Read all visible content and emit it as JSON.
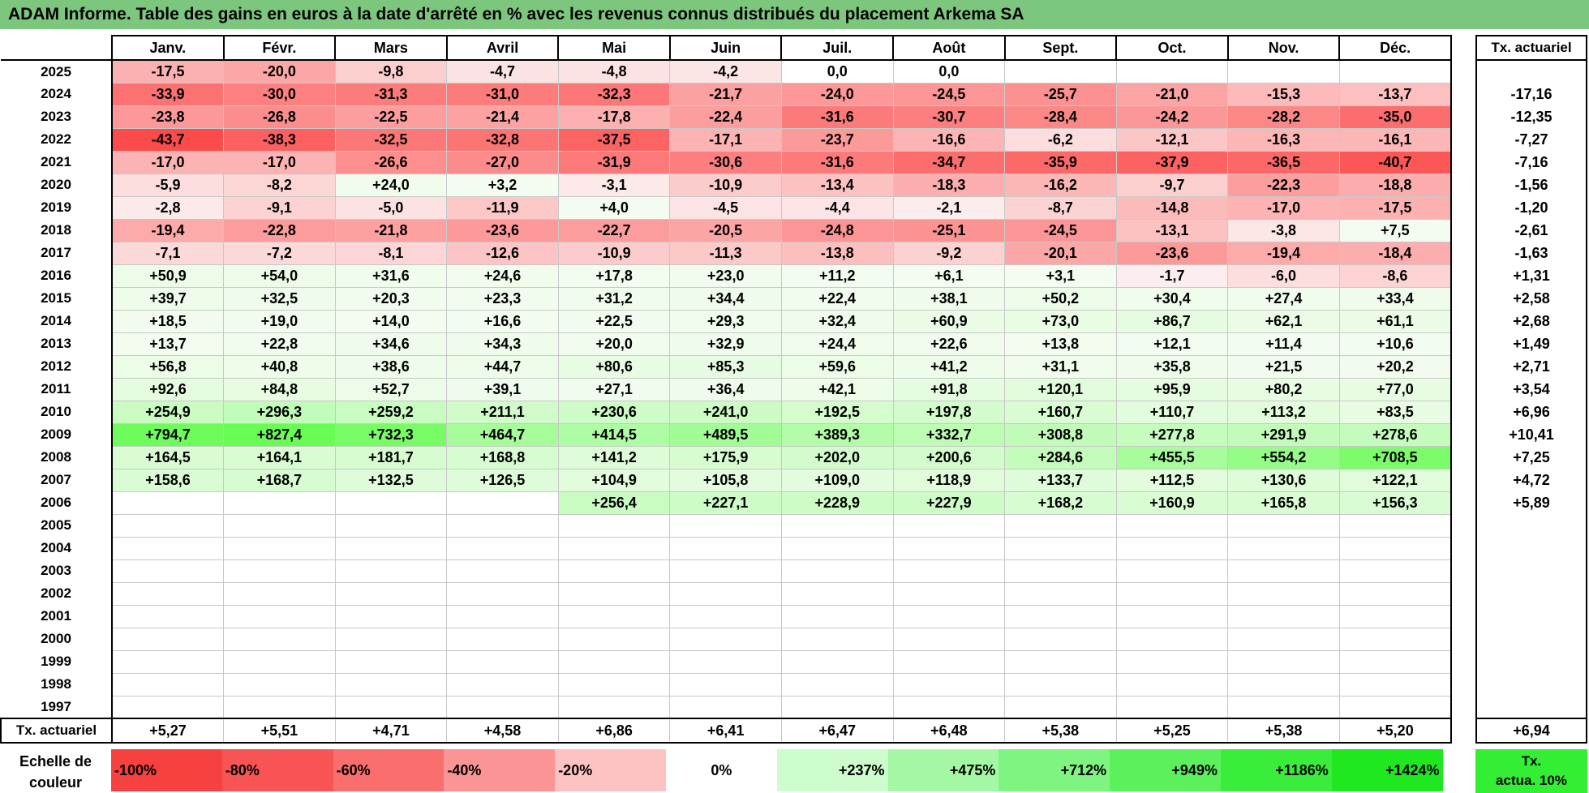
{
  "title": "ADAM Informe. Table des gains en euros à la date d'arrêté en % avec les revenus connus distribués du placement Arkema SA",
  "months": [
    "Janv.",
    "Févr.",
    "Mars",
    "Avril",
    "Mai",
    "Juin",
    "Juil.",
    "Août",
    "Sept.",
    "Oct.",
    "Nov.",
    "Déc."
  ],
  "tx_header": "Tx. actuariel",
  "rows": [
    {
      "year": "2025",
      "values": [
        "-17,5",
        "-20,0",
        "-9,8",
        "-4,7",
        "-4,8",
        "-4,2",
        "0,0",
        "0,0",
        "",
        "",
        "",
        ""
      ],
      "tx": ""
    },
    {
      "year": "2024",
      "values": [
        "-33,9",
        "-30,0",
        "-31,3",
        "-31,0",
        "-32,3",
        "-21,7",
        "-24,0",
        "-24,5",
        "-25,7",
        "-21,0",
        "-15,3",
        "-13,7"
      ],
      "tx": "-17,16"
    },
    {
      "year": "2023",
      "values": [
        "-23,8",
        "-26,8",
        "-22,5",
        "-21,4",
        "-17,8",
        "-22,4",
        "-31,6",
        "-30,7",
        "-28,4",
        "-24,2",
        "-28,2",
        "-35,0"
      ],
      "tx": "-12,35"
    },
    {
      "year": "2022",
      "values": [
        "-43,7",
        "-38,3",
        "-32,5",
        "-32,8",
        "-37,5",
        "-17,1",
        "-23,7",
        "-16,6",
        "-6,2",
        "-12,1",
        "-16,3",
        "-16,1"
      ],
      "tx": "-7,27"
    },
    {
      "year": "2021",
      "values": [
        "-17,0",
        "-17,0",
        "-26,6",
        "-27,0",
        "-31,9",
        "-30,6",
        "-31,6",
        "-34,7",
        "-35,9",
        "-37,9",
        "-36,5",
        "-40,7"
      ],
      "tx": "-7,16"
    },
    {
      "year": "2020",
      "values": [
        "-5,9",
        "-8,2",
        "+24,0",
        "+3,2",
        "-3,1",
        "-10,9",
        "-13,4",
        "-18,3",
        "-16,2",
        "-9,7",
        "-22,3",
        "-18,8"
      ],
      "tx": "-1,56"
    },
    {
      "year": "2019",
      "values": [
        "-2,8",
        "-9,1",
        "-5,0",
        "-11,9",
        "+4,0",
        "-4,5",
        "-4,4",
        "-2,1",
        "-8,7",
        "-14,8",
        "-17,0",
        "-17,5"
      ],
      "tx": "-1,20"
    },
    {
      "year": "2018",
      "values": [
        "-19,4",
        "-22,8",
        "-21,8",
        "-23,6",
        "-22,7",
        "-20,5",
        "-24,8",
        "-25,1",
        "-24,5",
        "-13,1",
        "-3,8",
        "+7,5"
      ],
      "tx": "-2,61"
    },
    {
      "year": "2017",
      "values": [
        "-7,1",
        "-7,2",
        "-8,1",
        "-12,6",
        "-10,9",
        "-11,3",
        "-13,8",
        "-9,2",
        "-20,1",
        "-23,6",
        "-19,4",
        "-18,4"
      ],
      "tx": "-1,63"
    },
    {
      "year": "2016",
      "values": [
        "+50,9",
        "+54,0",
        "+31,6",
        "+24,6",
        "+17,8",
        "+23,0",
        "+11,2",
        "+6,1",
        "+3,1",
        "-1,7",
        "-6,0",
        "-8,6"
      ],
      "tx": "+1,31"
    },
    {
      "year": "2015",
      "values": [
        "+39,7",
        "+32,5",
        "+20,3",
        "+23,3",
        "+31,2",
        "+34,4",
        "+22,4",
        "+38,1",
        "+50,2",
        "+30,4",
        "+27,4",
        "+33,4"
      ],
      "tx": "+2,58"
    },
    {
      "year": "2014",
      "values": [
        "+18,5",
        "+19,0",
        "+14,0",
        "+16,6",
        "+22,5",
        "+29,3",
        "+32,4",
        "+60,9",
        "+73,0",
        "+86,7",
        "+62,1",
        "+61,1"
      ],
      "tx": "+2,68"
    },
    {
      "year": "2013",
      "values": [
        "+13,7",
        "+22,8",
        "+34,6",
        "+34,3",
        "+20,0",
        "+32,9",
        "+24,4",
        "+22,6",
        "+13,8",
        "+12,1",
        "+11,4",
        "+10,6"
      ],
      "tx": "+1,49"
    },
    {
      "year": "2012",
      "values": [
        "+56,8",
        "+40,8",
        "+38,6",
        "+44,7",
        "+80,6",
        "+85,3",
        "+59,6",
        "+41,2",
        "+31,1",
        "+35,8",
        "+21,5",
        "+20,2"
      ],
      "tx": "+2,71"
    },
    {
      "year": "2011",
      "values": [
        "+92,6",
        "+84,8",
        "+52,7",
        "+39,1",
        "+27,1",
        "+36,4",
        "+42,1",
        "+91,8",
        "+120,1",
        "+95,9",
        "+80,2",
        "+77,0"
      ],
      "tx": "+3,54"
    },
    {
      "year": "2010",
      "values": [
        "+254,9",
        "+296,3",
        "+259,2",
        "+211,1",
        "+230,6",
        "+241,0",
        "+192,5",
        "+197,8",
        "+160,7",
        "+110,7",
        "+113,2",
        "+83,5"
      ],
      "tx": "+6,96"
    },
    {
      "year": "2009",
      "values": [
        "+794,7",
        "+827,4",
        "+732,3",
        "+464,7",
        "+414,5",
        "+489,5",
        "+389,3",
        "+332,7",
        "+308,8",
        "+277,8",
        "+291,9",
        "+278,6"
      ],
      "tx": "+10,41"
    },
    {
      "year": "2008",
      "values": [
        "+164,5",
        "+164,1",
        "+181,7",
        "+168,8",
        "+141,2",
        "+175,9",
        "+202,0",
        "+200,6",
        "+284,6",
        "+455,5",
        "+554,2",
        "+708,5"
      ],
      "tx": "+7,25"
    },
    {
      "year": "2007",
      "values": [
        "+158,6",
        "+168,7",
        "+132,5",
        "+126,5",
        "+104,9",
        "+105,8",
        "+109,0",
        "+118,9",
        "+133,7",
        "+112,5",
        "+130,6",
        "+122,1"
      ],
      "tx": "+4,72"
    },
    {
      "year": "2006",
      "values": [
        "",
        "",
        "",
        "",
        "+256,4",
        "+227,1",
        "+228,9",
        "+227,9",
        "+168,2",
        "+160,9",
        "+165,8",
        "+156,3"
      ],
      "tx": "+5,89"
    },
    {
      "year": "2005",
      "values": [
        "",
        "",
        "",
        "",
        "",
        "",
        "",
        "",
        "",
        "",
        "",
        ""
      ],
      "tx": ""
    },
    {
      "year": "2004",
      "values": [
        "",
        "",
        "",
        "",
        "",
        "",
        "",
        "",
        "",
        "",
        "",
        ""
      ],
      "tx": ""
    },
    {
      "year": "2003",
      "values": [
        "",
        "",
        "",
        "",
        "",
        "",
        "",
        "",
        "",
        "",
        "",
        ""
      ],
      "tx": ""
    },
    {
      "year": "2002",
      "values": [
        "",
        "",
        "",
        "",
        "",
        "",
        "",
        "",
        "",
        "",
        "",
        ""
      ],
      "tx": ""
    },
    {
      "year": "2001",
      "values": [
        "",
        "",
        "",
        "",
        "",
        "",
        "",
        "",
        "",
        "",
        "",
        ""
      ],
      "tx": ""
    },
    {
      "year": "2000",
      "values": [
        "",
        "",
        "",
        "",
        "",
        "",
        "",
        "",
        "",
        "",
        "",
        ""
      ],
      "tx": ""
    },
    {
      "year": "1999",
      "values": [
        "",
        "",
        "",
        "",
        "",
        "",
        "",
        "",
        "",
        "",
        "",
        ""
      ],
      "tx": ""
    },
    {
      "year": "1998",
      "values": [
        "",
        "",
        "",
        "",
        "",
        "",
        "",
        "",
        "",
        "",
        "",
        ""
      ],
      "tx": ""
    },
    {
      "year": "1997",
      "values": [
        "",
        "",
        "",
        "",
        "",
        "",
        "",
        "",
        "",
        "",
        "",
        ""
      ],
      "tx": ""
    }
  ],
  "footer": {
    "label": "Tx. actuariel",
    "values": [
      "+5,27",
      "+5,51",
      "+4,71",
      "+4,58",
      "+6,86",
      "+6,41",
      "+6,47",
      "+6,48",
      "+5,38",
      "+5,25",
      "+5,38",
      "+5,20"
    ],
    "tx": "+6,94"
  },
  "scale": {
    "label_line1": "Echelle de",
    "label_line2": "couleur",
    "swatches": [
      {
        "label": "-100%",
        "color": "#f74040",
        "align": "left"
      },
      {
        "label": "-80%",
        "color": "#f85454",
        "align": "left"
      },
      {
        "label": "-60%",
        "color": "#fa6e6e",
        "align": "left"
      },
      {
        "label": "-40%",
        "color": "#fb9494",
        "align": "left"
      },
      {
        "label": "-20%",
        "color": "#fdc2c2",
        "align": "left"
      },
      {
        "label": "0%",
        "color": "#ffffff",
        "align": "center"
      },
      {
        "label": "+237%",
        "color": "#cdfccd",
        "align": "right"
      },
      {
        "label": "+475%",
        "color": "#a4f8a4",
        "align": "right"
      },
      {
        "label": "+712%",
        "color": "#80f480",
        "align": "right"
      },
      {
        "label": "+949%",
        "color": "#5cf05c",
        "align": "right"
      },
      {
        "label": "+1186%",
        "color": "#3aed3a",
        "align": "right"
      },
      {
        "label": "+1424%",
        "color": "#20e820",
        "align": "right"
      }
    ],
    "tx_line1": "Tx.",
    "tx_line2": "actua. 10%"
  }
}
